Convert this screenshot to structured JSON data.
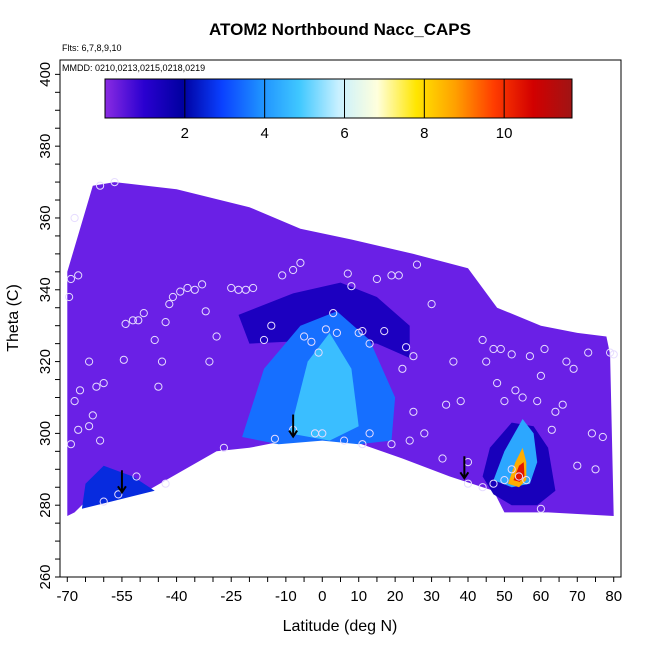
{
  "chart_data": {
    "type": "heatmap",
    "title": "ATOM2 Northbound Nacc_CAPS",
    "annotations": [
      "Flts: 6,7,8,9,10",
      "MMDD: 0210,0213,0215,0218,0219"
    ],
    "xlabel": "Latitude (deg N)",
    "ylabel": "Theta (C)",
    "xlim": [
      -72,
      82
    ],
    "ylim": [
      260,
      404
    ],
    "x_ticks": [
      -70,
      -55,
      -40,
      -25,
      -10,
      0,
      10,
      20,
      30,
      40,
      50,
      60,
      70,
      80
    ],
    "y_ticks": [
      260,
      280,
      300,
      320,
      340,
      360,
      380,
      400
    ],
    "colorbar": {
      "ticks": [
        2,
        4,
        6,
        8,
        10
      ],
      "range": [
        0,
        11.7
      ],
      "stops": [
        "#8a2be2",
        "#2a00d0",
        "#0000a0",
        "#0a40ff",
        "#1e90ff",
        "#40c8ff",
        "#c8f0ff",
        "#ffffdc",
        "#ffe600",
        "#ffa000",
        "#ff3c00",
        "#d20000",
        "#a01414"
      ]
    },
    "background_value": 0.6,
    "background_color": "#6a20e6",
    "regions": [
      {
        "name": "upper-dark-band",
        "value": 1.3,
        "polygon": [
          [
            -23,
            333
          ],
          [
            -8,
            339
          ],
          [
            5,
            342
          ],
          [
            15,
            338
          ],
          [
            24,
            330
          ],
          [
            24,
            321
          ],
          [
            15,
            325
          ],
          [
            0,
            326
          ],
          [
            -20,
            325
          ]
        ]
      },
      {
        "name": "central-plume",
        "value": 3.5,
        "polygon": [
          [
            -22,
            299
          ],
          [
            -16,
            318
          ],
          [
            -6,
            330
          ],
          [
            4,
            334
          ],
          [
            13,
            326
          ],
          [
            20,
            310
          ],
          [
            19,
            298
          ],
          [
            10,
            297
          ],
          [
            0,
            298
          ],
          [
            -12,
            297
          ]
        ]
      },
      {
        "name": "central-plume-core",
        "value": 4.7,
        "polygon": [
          [
            -9,
            300
          ],
          [
            -4,
            320
          ],
          [
            2,
            328
          ],
          [
            8,
            318
          ],
          [
            10,
            302
          ],
          [
            2,
            298
          ]
        ]
      },
      {
        "name": "west-tongue",
        "value": 2.6,
        "polygon": [
          [
            -65,
            286
          ],
          [
            -60,
            291
          ],
          [
            -52,
            288
          ],
          [
            -46,
            284
          ],
          [
            -58,
            281
          ],
          [
            -66,
            279
          ]
        ]
      },
      {
        "name": "north-plume-base",
        "value": 1.4,
        "polygon": [
          [
            44,
            288
          ],
          [
            46,
            296
          ],
          [
            52,
            303
          ],
          [
            58,
            302
          ],
          [
            62,
            296
          ],
          [
            64,
            284
          ],
          [
            59,
            280
          ],
          [
            52,
            280
          ],
          [
            47,
            283
          ]
        ]
      },
      {
        "name": "north-plume",
        "value": 4.3,
        "polygon": [
          [
            47,
            287
          ],
          [
            50,
            295
          ],
          [
            55,
            304
          ],
          [
            58,
            300
          ],
          [
            59,
            292
          ],
          [
            57,
            286
          ],
          [
            52,
            285
          ]
        ]
      },
      {
        "name": "north-plume-core",
        "value": 8.6,
        "polygon": [
          [
            51,
            286
          ],
          [
            53,
            292
          ],
          [
            55,
            296
          ],
          [
            56,
            292
          ],
          [
            56,
            287
          ],
          [
            54,
            285
          ]
        ]
      },
      {
        "name": "north-plume-hot",
        "value": 10.4,
        "polygon": [
          [
            52.5,
            287
          ],
          [
            54,
            291
          ],
          [
            55.3,
            292
          ],
          [
            55.5,
            288
          ],
          [
            54.2,
            286.5
          ]
        ]
      }
    ],
    "domain_boundary_top": [
      [
        -70,
        345
      ],
      [
        -63,
        369
      ],
      [
        -57,
        370
      ],
      [
        -40,
        368
      ],
      [
        -20,
        363
      ],
      [
        -6,
        357
      ],
      [
        8,
        354
      ],
      [
        25,
        350
      ],
      [
        40,
        346
      ],
      [
        48,
        335
      ],
      [
        60,
        330
      ],
      [
        70,
        328
      ],
      [
        78,
        327
      ],
      [
        79,
        322
      ],
      [
        80,
        277
      ]
    ],
    "domain_boundary_bottom": [
      [
        80,
        277
      ],
      [
        62,
        278
      ],
      [
        50,
        278
      ],
      [
        47,
        284
      ],
      [
        35,
        288
      ],
      [
        22,
        293
      ],
      [
        8,
        298
      ],
      [
        -3,
        299
      ],
      [
        -10,
        298
      ],
      [
        -20,
        296
      ],
      [
        -29,
        295
      ],
      [
        -48,
        284
      ],
      [
        -65,
        281
      ],
      [
        -68,
        278
      ],
      [
        -70,
        277
      ]
    ],
    "observations": [
      [
        -69.5,
        338
      ],
      [
        -69,
        343
      ],
      [
        -68,
        360
      ],
      [
        -67,
        344
      ],
      [
        -68,
        309
      ],
      [
        -66.5,
        312
      ],
      [
        -69,
        297
      ],
      [
        -62,
        313
      ],
      [
        -64,
        320
      ],
      [
        -63,
        305
      ],
      [
        -64,
        302
      ],
      [
        -60,
        314
      ],
      [
        -61,
        298
      ],
      [
        -67,
        301
      ],
      [
        -57,
        370
      ],
      [
        -61,
        369
      ],
      [
        -54.5,
        320.5
      ],
      [
        -54,
        330.5
      ],
      [
        -52,
        331.5
      ],
      [
        -50.5,
        331.5
      ],
      [
        -49,
        333.5
      ],
      [
        -46,
        326
      ],
      [
        -45,
        313
      ],
      [
        -44,
        320
      ],
      [
        -43,
        286
      ],
      [
        -43,
        331
      ],
      [
        -42,
        336
      ],
      [
        -41,
        338
      ],
      [
        -39,
        339.5
      ],
      [
        -37,
        340.5
      ],
      [
        -35,
        340
      ],
      [
        -33,
        341.5
      ],
      [
        -32,
        334
      ],
      [
        -31,
        320
      ],
      [
        -29,
        327
      ],
      [
        -27,
        296
      ],
      [
        -25,
        340.5
      ],
      [
        -23,
        340
      ],
      [
        -21,
        340
      ],
      [
        -19,
        340.5
      ],
      [
        -16,
        326
      ],
      [
        -14,
        330
      ],
      [
        -13,
        298.5
      ],
      [
        -11,
        344
      ],
      [
        -8,
        345.5
      ],
      [
        -6,
        347.5
      ],
      [
        -5,
        327
      ],
      [
        -3,
        325.5
      ],
      [
        -1,
        322.5
      ],
      [
        1,
        329
      ],
      [
        3,
        333.5
      ],
      [
        4,
        328
      ],
      [
        7,
        344.5
      ],
      [
        8,
        341
      ],
      [
        10,
        328
      ],
      [
        11,
        328.5
      ],
      [
        13,
        325
      ],
      [
        15,
        343
      ],
      [
        17,
        328.5
      ],
      [
        19,
        344
      ],
      [
        21,
        344
      ],
      [
        23,
        324
      ],
      [
        25,
        321.5
      ],
      [
        26,
        347
      ],
      [
        22,
        318
      ],
      [
        25,
        306
      ],
      [
        28,
        300
      ],
      [
        30,
        336
      ],
      [
        34,
        308
      ],
      [
        36,
        320
      ],
      [
        38,
        309
      ],
      [
        40,
        292
      ],
      [
        44,
        326
      ],
      [
        45,
        320
      ],
      [
        47,
        323.5
      ],
      [
        49,
        323.5
      ],
      [
        48,
        314
      ],
      [
        50,
        309
      ],
      [
        52,
        322
      ],
      [
        53,
        312
      ],
      [
        55,
        310
      ],
      [
        57,
        321.5
      ],
      [
        60,
        316
      ],
      [
        59,
        309
      ],
      [
        61,
        323.5
      ],
      [
        63,
        301
      ],
      [
        64,
        306
      ],
      [
        66,
        308
      ],
      [
        67,
        320
      ],
      [
        69,
        318
      ],
      [
        70,
        291
      ],
      [
        73,
        322.5
      ],
      [
        74,
        300
      ],
      [
        75,
        290
      ],
      [
        77,
        299
      ],
      [
        79,
        322.5
      ],
      [
        80,
        322
      ],
      [
        40,
        286
      ],
      [
        44,
        285
      ],
      [
        47,
        286
      ],
      [
        50,
        287
      ],
      [
        52,
        290
      ],
      [
        54,
        288
      ],
      [
        56,
        287
      ],
      [
        60,
        279
      ],
      [
        -60,
        281
      ],
      [
        -56,
        283
      ],
      [
        -51,
        288
      ],
      [
        -8,
        301
      ],
      [
        -2,
        300
      ],
      [
        13,
        300
      ],
      [
        19,
        297
      ],
      [
        24,
        298
      ],
      [
        33,
        293
      ],
      [
        0,
        300
      ],
      [
        6,
        298
      ],
      [
        11,
        297
      ]
    ],
    "arrows_latitude": [
      -55,
      -8,
      39
    ]
  }
}
